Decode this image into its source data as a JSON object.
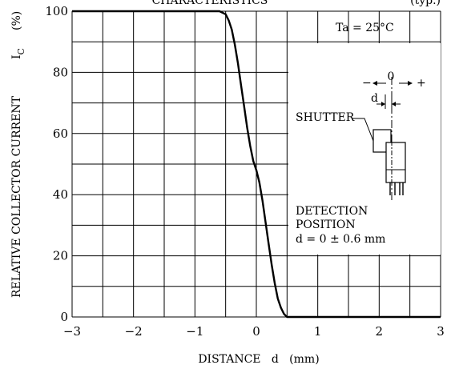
{
  "chart_data": {
    "type": "line",
    "title": "CHARACTERISTICS",
    "title_suffix": "(typ.)",
    "xlabel": "DISTANCE   d   (mm)",
    "ylabel": "RELATIVE COLLECTOR CURRENT",
    "ylabel_symbol": "I",
    "ylabel_subscript": "C",
    "ylabel_unit": "(%)",
    "xlim": [
      -3,
      3
    ],
    "ylim": [
      0,
      100
    ],
    "x_ticks": [
      {
        "value": -3,
        "label": "−3"
      },
      {
        "value": -2,
        "label": "−2"
      },
      {
        "value": -1,
        "label": "−1"
      },
      {
        "value": 0,
        "label": "0"
      },
      {
        "value": 1,
        "label": "1"
      },
      {
        "value": 2,
        "label": "2"
      },
      {
        "value": 3,
        "label": "3"
      }
    ],
    "y_ticks": [
      {
        "value": 0,
        "label": "0"
      },
      {
        "value": 20,
        "label": "20"
      },
      {
        "value": 40,
        "label": "40"
      },
      {
        "value": 60,
        "label": "60"
      },
      {
        "value": 80,
        "label": "80"
      },
      {
        "value": 100,
        "label": "100"
      }
    ],
    "grid": true,
    "grid_x_step": 0.5,
    "grid_y_step": 10,
    "series": [
      {
        "x": [
          -3.0,
          -1.0,
          -0.6,
          -0.5,
          -0.45,
          -0.4,
          -0.35,
          -0.3,
          -0.25,
          -0.2,
          -0.15,
          -0.1,
          -0.05,
          0.0,
          0.05,
          0.1,
          0.15,
          0.2,
          0.25,
          0.3,
          0.35,
          0.4,
          0.45,
          0.5,
          0.55,
          1.0,
          2.0,
          3.0
        ],
        "y": [
          100,
          100,
          100,
          99,
          97,
          94,
          89,
          83,
          76,
          69,
          62,
          56,
          51,
          48,
          44,
          38,
          31,
          24,
          17,
          11,
          6,
          3,
          1,
          0,
          0,
          0,
          0,
          0
        ]
      }
    ],
    "annotations": {
      "condition": "Ta = 25°C",
      "diagram_center": "0",
      "diagram_minus": "−",
      "diagram_plus": "+",
      "diagram_d": "d",
      "shutter": "SHUTTER",
      "detection_line1": "DETECTION",
      "detection_line2": "POSITION",
      "detection_line3": "d = 0 ± 0.6 mm"
    }
  }
}
